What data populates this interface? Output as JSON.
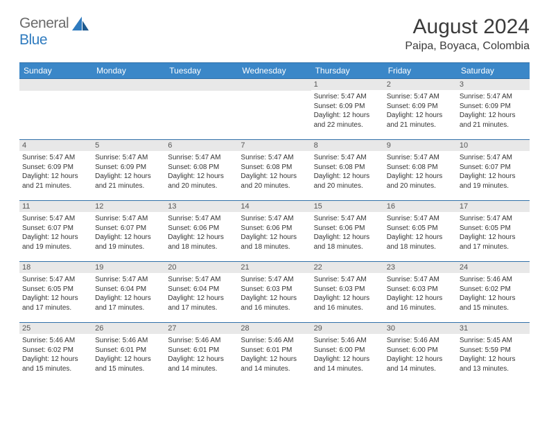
{
  "brand": {
    "part1": "General",
    "part2": "Blue"
  },
  "title": "August 2024",
  "location": "Paipa, Boyaca, Colombia",
  "colors": {
    "header_bg": "#3b87c8",
    "header_border": "#2f6fa8",
    "daynum_bg": "#e8e8e8",
    "brand_gray": "#6b6b6b",
    "brand_blue": "#2f7bbf"
  },
  "day_headers": [
    "Sunday",
    "Monday",
    "Tuesday",
    "Wednesday",
    "Thursday",
    "Friday",
    "Saturday"
  ],
  "weeks": [
    [
      {
        "n": "",
        "sunrise": "",
        "sunset": "",
        "daylight": ""
      },
      {
        "n": "",
        "sunrise": "",
        "sunset": "",
        "daylight": ""
      },
      {
        "n": "",
        "sunrise": "",
        "sunset": "",
        "daylight": ""
      },
      {
        "n": "",
        "sunrise": "",
        "sunset": "",
        "daylight": ""
      },
      {
        "n": "1",
        "sunrise": "5:47 AM",
        "sunset": "6:09 PM",
        "daylight": "12 hours and 22 minutes."
      },
      {
        "n": "2",
        "sunrise": "5:47 AM",
        "sunset": "6:09 PM",
        "daylight": "12 hours and 21 minutes."
      },
      {
        "n": "3",
        "sunrise": "5:47 AM",
        "sunset": "6:09 PM",
        "daylight": "12 hours and 21 minutes."
      }
    ],
    [
      {
        "n": "4",
        "sunrise": "5:47 AM",
        "sunset": "6:09 PM",
        "daylight": "12 hours and 21 minutes."
      },
      {
        "n": "5",
        "sunrise": "5:47 AM",
        "sunset": "6:09 PM",
        "daylight": "12 hours and 21 minutes."
      },
      {
        "n": "6",
        "sunrise": "5:47 AM",
        "sunset": "6:08 PM",
        "daylight": "12 hours and 20 minutes."
      },
      {
        "n": "7",
        "sunrise": "5:47 AM",
        "sunset": "6:08 PM",
        "daylight": "12 hours and 20 minutes."
      },
      {
        "n": "8",
        "sunrise": "5:47 AM",
        "sunset": "6:08 PM",
        "daylight": "12 hours and 20 minutes."
      },
      {
        "n": "9",
        "sunrise": "5:47 AM",
        "sunset": "6:08 PM",
        "daylight": "12 hours and 20 minutes."
      },
      {
        "n": "10",
        "sunrise": "5:47 AM",
        "sunset": "6:07 PM",
        "daylight": "12 hours and 19 minutes."
      }
    ],
    [
      {
        "n": "11",
        "sunrise": "5:47 AM",
        "sunset": "6:07 PM",
        "daylight": "12 hours and 19 minutes."
      },
      {
        "n": "12",
        "sunrise": "5:47 AM",
        "sunset": "6:07 PM",
        "daylight": "12 hours and 19 minutes."
      },
      {
        "n": "13",
        "sunrise": "5:47 AM",
        "sunset": "6:06 PM",
        "daylight": "12 hours and 18 minutes."
      },
      {
        "n": "14",
        "sunrise": "5:47 AM",
        "sunset": "6:06 PM",
        "daylight": "12 hours and 18 minutes."
      },
      {
        "n": "15",
        "sunrise": "5:47 AM",
        "sunset": "6:06 PM",
        "daylight": "12 hours and 18 minutes."
      },
      {
        "n": "16",
        "sunrise": "5:47 AM",
        "sunset": "6:05 PM",
        "daylight": "12 hours and 18 minutes."
      },
      {
        "n": "17",
        "sunrise": "5:47 AM",
        "sunset": "6:05 PM",
        "daylight": "12 hours and 17 minutes."
      }
    ],
    [
      {
        "n": "18",
        "sunrise": "5:47 AM",
        "sunset": "6:05 PM",
        "daylight": "12 hours and 17 minutes."
      },
      {
        "n": "19",
        "sunrise": "5:47 AM",
        "sunset": "6:04 PM",
        "daylight": "12 hours and 17 minutes."
      },
      {
        "n": "20",
        "sunrise": "5:47 AM",
        "sunset": "6:04 PM",
        "daylight": "12 hours and 17 minutes."
      },
      {
        "n": "21",
        "sunrise": "5:47 AM",
        "sunset": "6:03 PM",
        "daylight": "12 hours and 16 minutes."
      },
      {
        "n": "22",
        "sunrise": "5:47 AM",
        "sunset": "6:03 PM",
        "daylight": "12 hours and 16 minutes."
      },
      {
        "n": "23",
        "sunrise": "5:47 AM",
        "sunset": "6:03 PM",
        "daylight": "12 hours and 16 minutes."
      },
      {
        "n": "24",
        "sunrise": "5:46 AM",
        "sunset": "6:02 PM",
        "daylight": "12 hours and 15 minutes."
      }
    ],
    [
      {
        "n": "25",
        "sunrise": "5:46 AM",
        "sunset": "6:02 PM",
        "daylight": "12 hours and 15 minutes."
      },
      {
        "n": "26",
        "sunrise": "5:46 AM",
        "sunset": "6:01 PM",
        "daylight": "12 hours and 15 minutes."
      },
      {
        "n": "27",
        "sunrise": "5:46 AM",
        "sunset": "6:01 PM",
        "daylight": "12 hours and 14 minutes."
      },
      {
        "n": "28",
        "sunrise": "5:46 AM",
        "sunset": "6:01 PM",
        "daylight": "12 hours and 14 minutes."
      },
      {
        "n": "29",
        "sunrise": "5:46 AM",
        "sunset": "6:00 PM",
        "daylight": "12 hours and 14 minutes."
      },
      {
        "n": "30",
        "sunrise": "5:46 AM",
        "sunset": "6:00 PM",
        "daylight": "12 hours and 14 minutes."
      },
      {
        "n": "31",
        "sunrise": "5:45 AM",
        "sunset": "5:59 PM",
        "daylight": "12 hours and 13 minutes."
      }
    ]
  ],
  "labels": {
    "sunrise": "Sunrise: ",
    "sunset": "Sunset: ",
    "daylight": "Daylight: "
  }
}
